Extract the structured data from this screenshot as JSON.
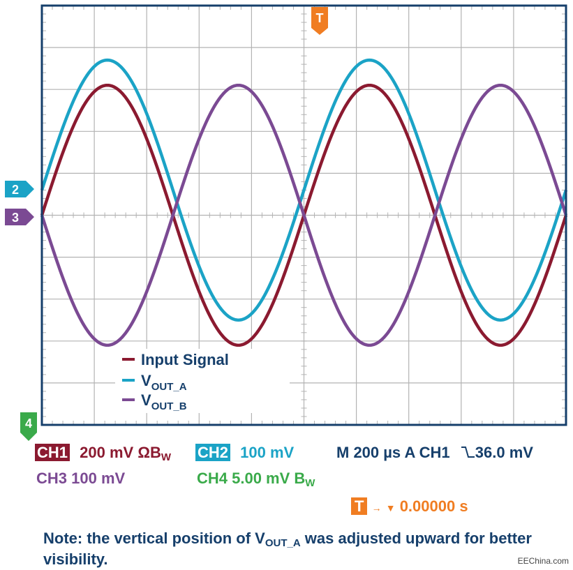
{
  "chart_data": {
    "type": "line",
    "x_divisions": 10,
    "y_divisions": 10,
    "time_per_division": "200 µs",
    "grid": true,
    "legend_placement": "bottom-left inside plot",
    "series": [
      {
        "name": "Input Signal",
        "channel": "CH1",
        "color": "#8b1a30",
        "amplitude_div": 3.1,
        "offset_div": 0,
        "phase_deg": 0,
        "periods": 2
      },
      {
        "name": "VOUT_A",
        "channel": "CH2",
        "color": "#1ba3c6",
        "amplitude_div": 3.1,
        "offset_div": 0.6,
        "phase_deg": 0,
        "periods": 2
      },
      {
        "name": "VOUT_B",
        "channel": "CH3",
        "color": "#7b4a93",
        "amplitude_div": 3.1,
        "offset_div": 0,
        "phase_deg": 180,
        "periods": 2
      }
    ],
    "legend": [
      {
        "base": "Input Signal",
        "sub": ""
      },
      {
        "base": "V",
        "sub": "OUT_A"
      },
      {
        "base": "V",
        "sub": "OUT_B"
      }
    ]
  },
  "markers": {
    "trigger": "T",
    "ch2": "2",
    "ch3": "3",
    "ch4": "4"
  },
  "readout": {
    "ch1_tag": "CH1",
    "ch1_scale": "200 mV",
    "ch1_suffix": "ΩB",
    "ch1_suffix_sub": "W",
    "ch2_tag": "CH2",
    "ch2_scale": "100 mV",
    "timebase": "M 200 µs A  CH1",
    "trigger_level": "36.0 mV",
    "ch3": "CH3  100 mV",
    "ch4": "CH4  5.00 mV B",
    "ch4_sub": "W",
    "trigger_pos_tag": "T",
    "trigger_pos_value": "0.00000 s"
  },
  "note": {
    "before": "Note: the vertical position of V",
    "sub": "OUT_A",
    "after": " was adjusted upward for better visibility."
  },
  "credit": "EEChina.com",
  "colors": {
    "ch1": "#8b1a30",
    "ch2": "#1ba3c6",
    "ch3": "#7b4a93",
    "ch4": "#3aaa4a",
    "trigger": "#f07d22",
    "text_dark": "#163f6b",
    "grid": "#b3b3b3"
  }
}
